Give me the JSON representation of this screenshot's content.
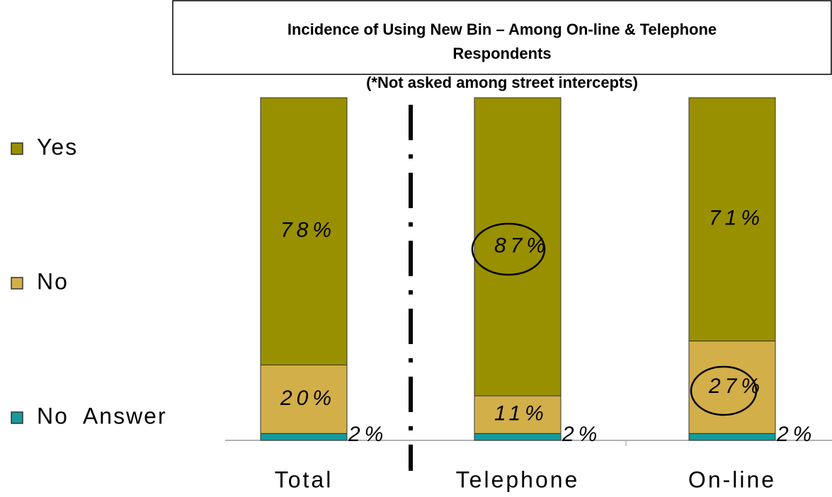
{
  "chart_data": {
    "type": "stacked_bar",
    "title": "Incidence of Using New Bin – Among On-line & Telephone Respondents",
    "subtitle": "(*Not asked among street intercepts)",
    "categories": [
      "Total",
      "Telephone",
      "On-line"
    ],
    "series": [
      {
        "name": "No  Answer",
        "color": "#159b9b",
        "values": [
          2,
          2,
          2
        ],
        "value_labels": [
          "2%",
          "2%",
          "2%"
        ]
      },
      {
        "name": "No",
        "color": "#d3af4a",
        "values": [
          20,
          11,
          27
        ],
        "value_labels": [
          "20%",
          "11%",
          "27%"
        ]
      },
      {
        "name": "Yes",
        "color": "#999000",
        "values": [
          78,
          87,
          71
        ],
        "value_labels": [
          "78%",
          "87%",
          "71%"
        ]
      }
    ]
  }
}
